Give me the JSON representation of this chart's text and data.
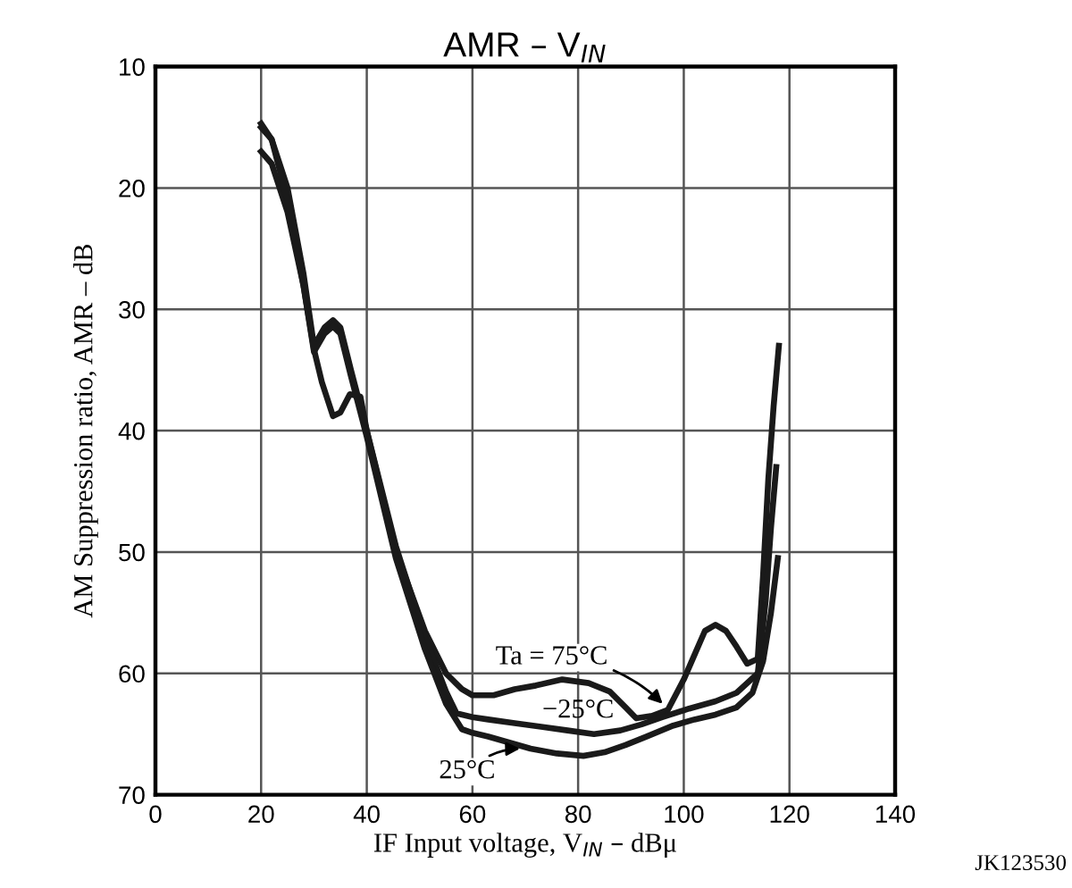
{
  "chart_data": {
    "type": "line",
    "title": "AMR – V$_{IN}$",
    "xlabel": "IF Input voltage, V$_{IN}$ – dBμ",
    "ylabel": "AM Suppression ratio, AMR – dB",
    "xlim": [
      0,
      140
    ],
    "xticks": [
      0,
      20,
      40,
      60,
      80,
      100,
      120,
      140
    ],
    "ylim": [
      70,
      10
    ],
    "yticks": [
      10,
      20,
      30,
      40,
      50,
      60,
      70
    ],
    "grid": true,
    "marker": "none",
    "line_style": "solid",
    "series": [
      {
        "color": "#1a1a1a",
        "x": [
          20,
          22,
          25,
          28,
          30,
          31.5,
          33.6,
          35,
          36.8,
          38.8,
          40,
          45.5,
          51,
          55,
          58,
          60,
          64,
          68,
          72,
          77,
          82,
          86,
          89,
          91,
          94,
          97,
          100,
          102,
          104,
          106,
          108,
          110,
          112,
          114,
          115,
          116,
          117,
          118
        ],
        "values": [
          17,
          18,
          22,
          28,
          33.3,
          36,
          38.8,
          38.5,
          37,
          37.2,
          40,
          49.9,
          56.5,
          60,
          61.3,
          61.8,
          61.8,
          61.3,
          61,
          60.5,
          60.8,
          61.5,
          62.8,
          63.7,
          63.5,
          63,
          60.5,
          58.5,
          56.5,
          56,
          56.5,
          57.8,
          59.2,
          58.8,
          52,
          44,
          38,
          33
        ]
      },
      {
        "color": "#1a1a1a",
        "x": [
          20,
          22,
          25,
          28,
          30,
          32,
          33.6,
          35,
          37,
          40,
          45.5,
          51,
          55,
          57,
          60,
          63,
          68,
          73,
          78,
          83,
          88,
          92,
          96,
          101,
          106,
          110,
          114,
          115.5,
          116.5,
          117.5
        ],
        "values": [
          15,
          16,
          20,
          27,
          33,
          31.5,
          30.9,
          31.5,
          35,
          40,
          49.5,
          57,
          61.5,
          63.3,
          63.6,
          63.8,
          64.1,
          64.4,
          64.7,
          65,
          64.7,
          64.2,
          63.6,
          62.9,
          62.3,
          61.6,
          60,
          54,
          48,
          43
        ]
      },
      {
        "color": "#1a1a1a",
        "x": [
          20,
          22,
          25,
          28,
          30,
          32,
          33.6,
          35,
          37,
          40,
          45.5,
          51,
          55,
          58,
          60,
          63,
          67,
          71,
          76,
          81,
          85,
          89,
          93,
          98,
          102,
          106,
          110,
          113,
          115,
          116.5,
          117.8
        ],
        "values": [
          14.7,
          16,
          21,
          28,
          33.5,
          32,
          31.4,
          32,
          35.5,
          40.5,
          50.5,
          58,
          62.5,
          64.6,
          64.9,
          65.2,
          65.7,
          66.2,
          66.6,
          66.8,
          66.5,
          65.9,
          65.2,
          64.3,
          63.8,
          63.4,
          62.8,
          61.6,
          59,
          55,
          50.5
        ]
      }
    ],
    "annotations": [
      {
        "text": "Ta = 75°C",
        "x": 96,
        "y": 62.5
      },
      {
        "text": "−25°C",
        "x": 78,
        "y": 64.7
      },
      {
        "text": "25°C",
        "x": 69,
        "y": 66.2
      },
      "JK123530"
    ]
  }
}
